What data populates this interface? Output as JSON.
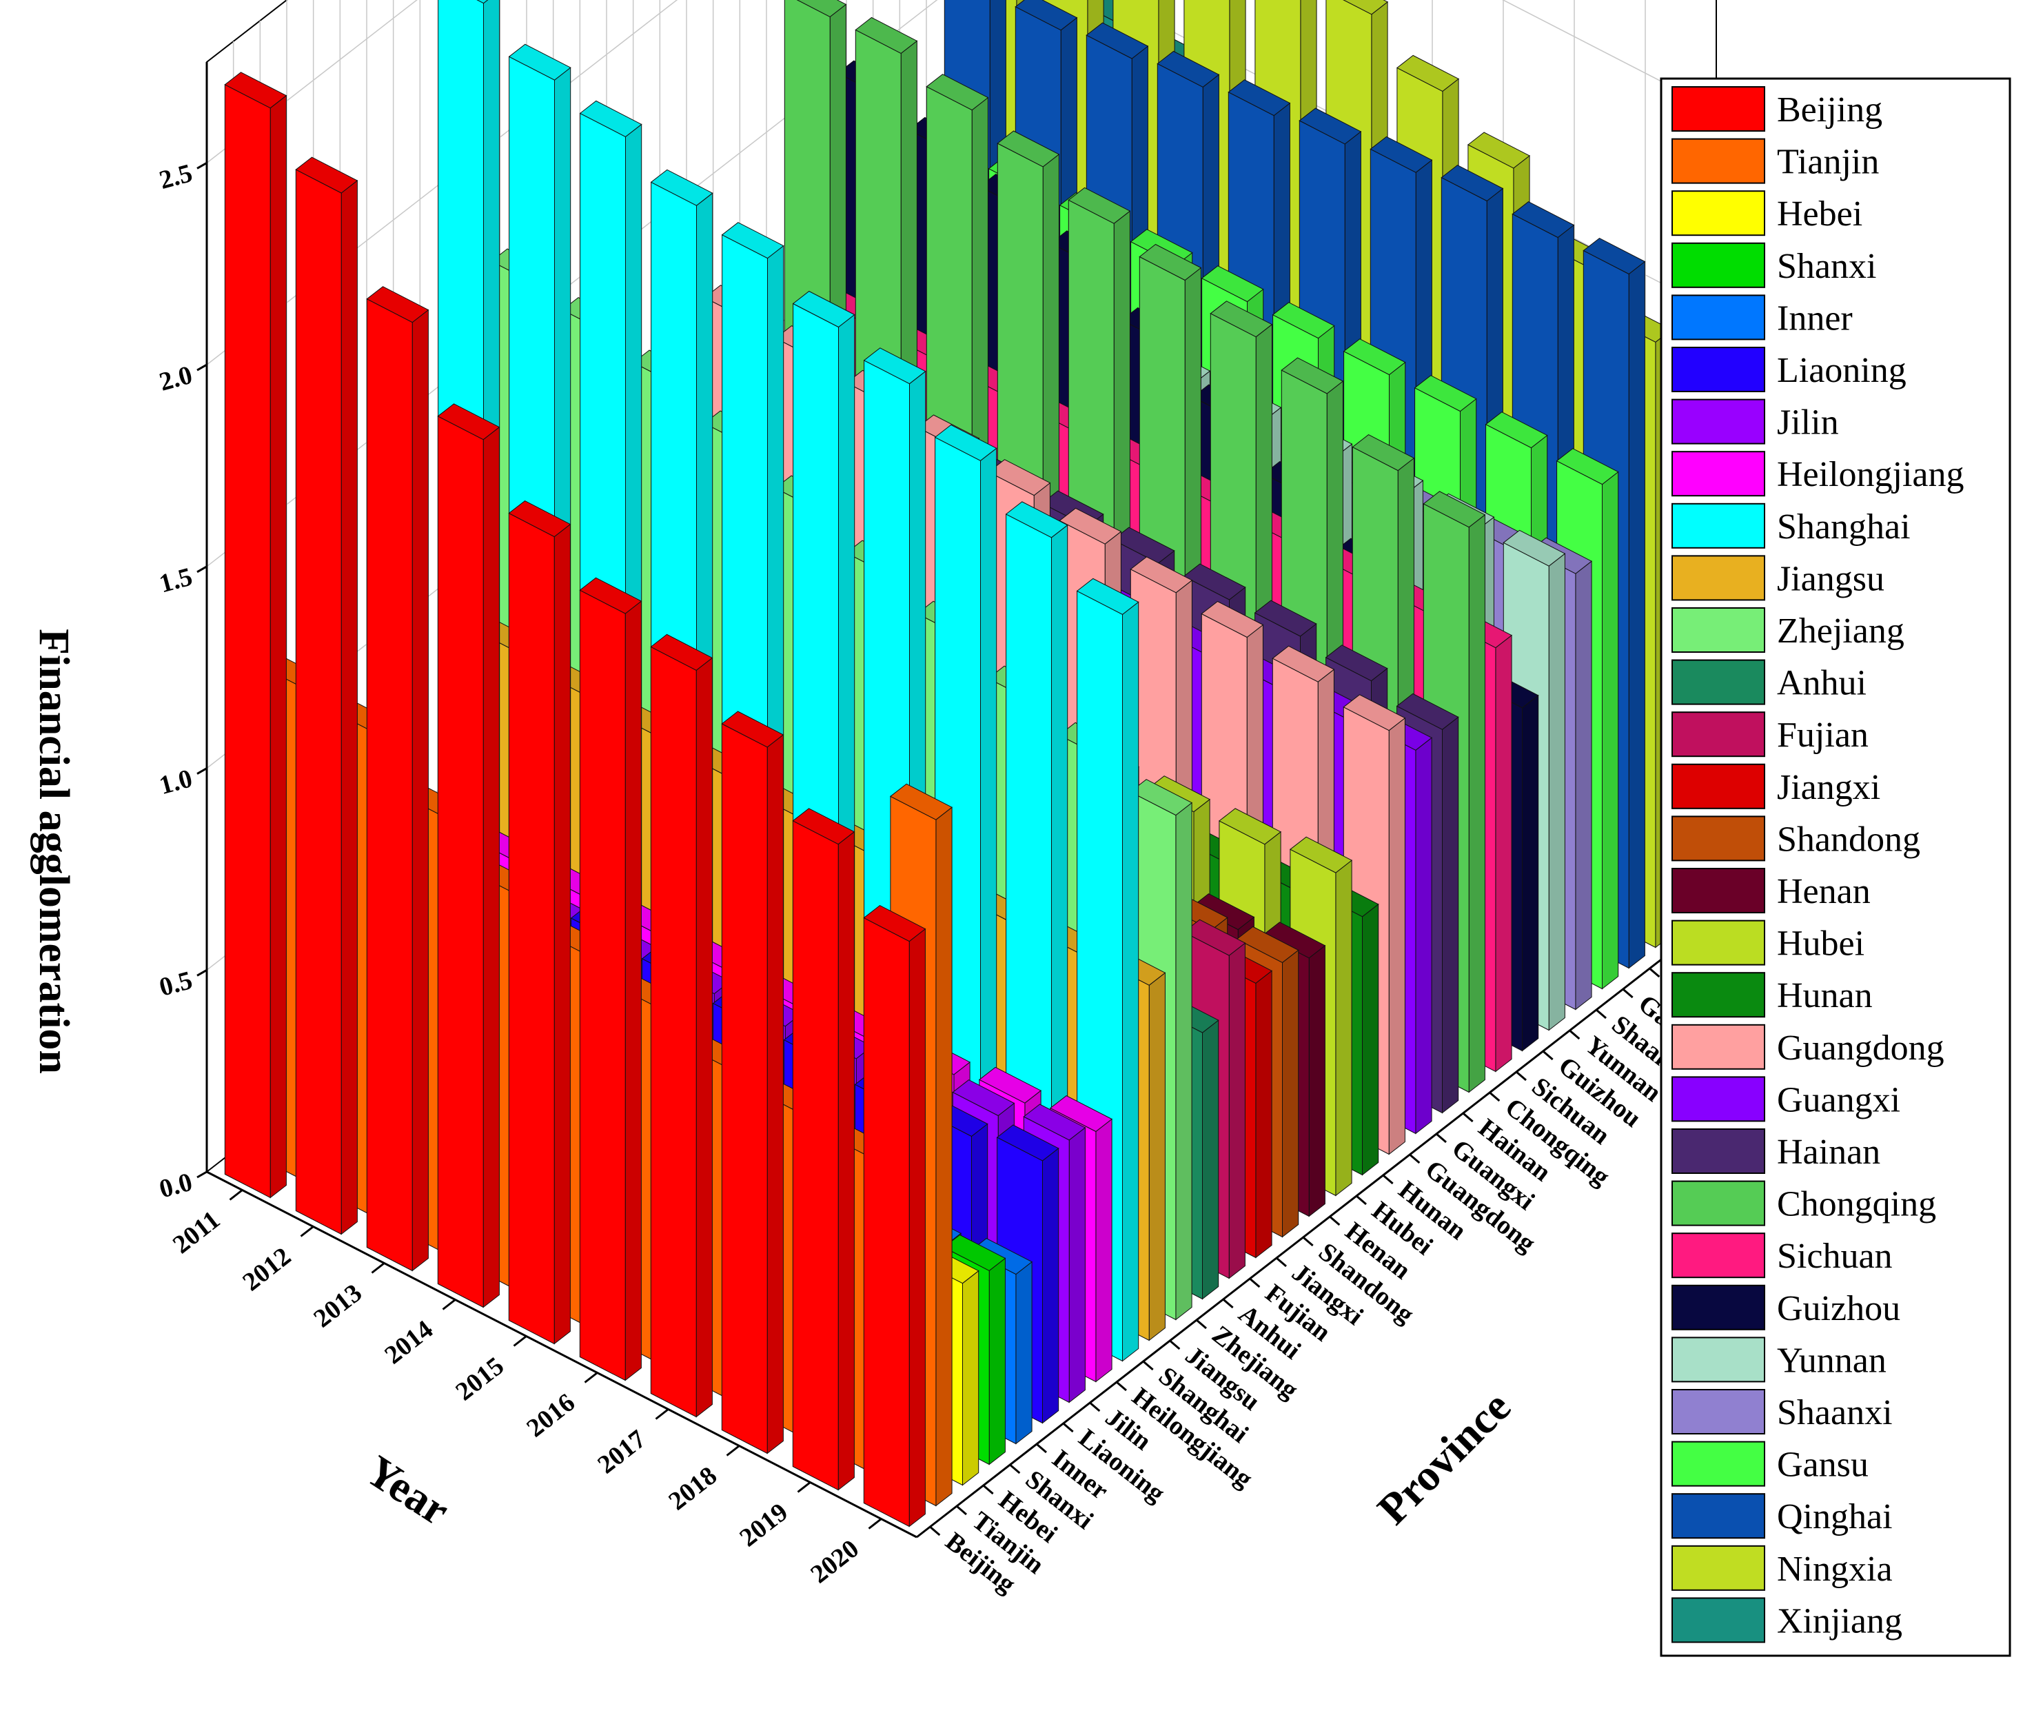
{
  "chart_data": {
    "type": "bar3d",
    "zlabel": "Financial agglomeration",
    "xlabel": "Year",
    "ylabel": "Province",
    "zlim": [
      0,
      2.75
    ],
    "z_ticks": [
      "0.0",
      "0.5",
      "1.0",
      "1.5",
      "2.0",
      "2.5"
    ],
    "grid": true,
    "legend_position": "right",
    "years": [
      "2011",
      "2012",
      "2013",
      "2014",
      "2015",
      "2016",
      "2017",
      "2018",
      "2019",
      "2020"
    ],
    "provinces": [
      "Beijing",
      "Tianjin",
      "Hebei",
      "Shanxi",
      "Inner",
      "Liaoning",
      "Jilin",
      "Heilongjiang",
      "Shanghai",
      "Jiangsu",
      "Zhejiang",
      "Anhui",
      "Fujian",
      "Jiangxi",
      "Shandong",
      "Henan",
      "Hubei",
      "Hunan",
      "Guangdong",
      "Guangxi",
      "Hainan",
      "Chongqing",
      "Sichuan",
      "Guizhou",
      "Yunnan",
      "Shaanxi",
      "Gansu",
      "Qinghai",
      "Ningxia",
      "Xinjiang"
    ],
    "colors": [
      "#ff0000",
      "#ff6600",
      "#ffff00",
      "#00dd00",
      "#0077ff",
      "#2200ff",
      "#9900ff",
      "#ff00ff",
      "#00ffff",
      "#e8b020",
      "#77ee77",
      "#1a8a5e",
      "#c0105e",
      "#dd0000",
      "#c04e08",
      "#6a0028",
      "#bbdd22",
      "#0a8a10",
      "#ffa0a0",
      "#8800ff",
      "#4a2870",
      "#55cc55",
      "#ff1a80",
      "#080840",
      "#a8e0c8",
      "#9080d0",
      "#44ff44",
      "#0a50b0",
      "#c0dd22",
      "#189080"
    ],
    "series": [
      {
        "name": "Beijing",
        "values": [
          2.7,
          2.58,
          2.35,
          2.15,
          2.0,
          1.9,
          1.85,
          1.75,
          1.6,
          1.45
        ]
      },
      {
        "name": "Tianjin",
        "values": [
          1.22,
          1.2,
          1.08,
          0.98,
          0.92,
          0.88,
          0.82,
          0.8,
          0.78,
          1.7
        ]
      },
      {
        "name": "Hebei",
        "values": [
          0.38,
          0.38,
          0.38,
          0.38,
          0.38,
          0.38,
          0.4,
          0.42,
          0.45,
          0.5
        ]
      },
      {
        "name": "Shanxi",
        "values": [
          0.55,
          0.52,
          0.5,
          0.48,
          0.46,
          0.44,
          0.43,
          0.42,
          0.42,
          0.48
        ]
      },
      {
        "name": "Inner",
        "values": [
          0.5,
          0.48,
          0.46,
          0.44,
          0.42,
          0.4,
          0.4,
          0.38,
          0.4,
          0.42
        ]
      },
      {
        "name": "Liaoning",
        "values": [
          0.7,
          0.68,
          0.66,
          0.65,
          0.64,
          0.62,
          0.62,
          0.6,
          0.62,
          0.65
        ]
      },
      {
        "name": "Jilin",
        "values": [
          0.55,
          0.55,
          0.55,
          0.55,
          0.56,
          0.57,
          0.58,
          0.6,
          0.62,
          0.65
        ]
      },
      {
        "name": "Heilongjiang",
        "values": [
          0.55,
          0.55,
          0.55,
          0.55,
          0.55,
          0.55,
          0.56,
          0.58,
          0.6,
          0.62
        ]
      },
      {
        "name": "Shanghai",
        "values": [
          2.55,
          2.45,
          2.4,
          2.32,
          2.28,
          2.2,
          2.15,
          2.05,
          1.95,
          1.85
        ]
      },
      {
        "name": "Jiangsu",
        "values": [
          0.9,
          0.88,
          0.87,
          0.86,
          0.85,
          0.85,
          0.85,
          0.86,
          0.87,
          0.88
        ]
      },
      {
        "name": "Zhejiang",
        "values": [
          1.75,
          1.72,
          1.68,
          1.62,
          1.55,
          1.48,
          1.42,
          1.35,
          1.3,
          1.25
        ]
      },
      {
        "name": "Anhui",
        "values": [
          0.65,
          0.64,
          0.63,
          0.62,
          0.62,
          0.62,
          0.63,
          0.64,
          0.65,
          0.66
        ]
      },
      {
        "name": "Fujian",
        "values": [
          0.8,
          0.8,
          0.8,
          0.8,
          0.8,
          0.8,
          0.8,
          0.8,
          0.8,
          0.8
        ]
      },
      {
        "name": "Jiangxi",
        "values": [
          0.6,
          0.6,
          0.6,
          0.6,
          0.6,
          0.6,
          0.62,
          0.64,
          0.66,
          0.68
        ]
      },
      {
        "name": "Shandong",
        "values": [
          0.7,
          0.68,
          0.67,
          0.66,
          0.65,
          0.65,
          0.65,
          0.66,
          0.67,
          0.68
        ]
      },
      {
        "name": "Henan",
        "values": [
          0.55,
          0.55,
          0.55,
          0.55,
          0.56,
          0.57,
          0.58,
          0.6,
          0.62,
          0.64
        ]
      },
      {
        "name": "Hubei",
        "values": [
          0.7,
          0.72,
          0.72,
          0.73,
          0.74,
          0.75,
          0.76,
          0.77,
          0.78,
          0.8
        ]
      },
      {
        "name": "Hunan",
        "values": [
          0.55,
          0.55,
          0.55,
          0.56,
          0.57,
          0.58,
          0.59,
          0.6,
          0.62,
          0.64
        ]
      },
      {
        "name": "Guangdong",
        "values": [
          1.25,
          1.24,
          1.22,
          1.2,
          1.18,
          1.15,
          1.12,
          1.1,
          1.08,
          1.05
        ]
      },
      {
        "name": "Guangxi",
        "values": [
          0.9,
          0.9,
          0.9,
          0.9,
          0.92,
          0.92,
          0.92,
          0.93,
          0.94,
          0.95
        ]
      },
      {
        "name": "Hainan",
        "values": [
          1.0,
          1.0,
          1.0,
          1.0,
          1.0,
          1.0,
          1.0,
          1.0,
          0.98,
          0.95
        ]
      },
      {
        "name": "Chongqing",
        "values": [
          1.85,
          1.85,
          1.8,
          1.75,
          1.7,
          1.65,
          1.6,
          1.55,
          1.45,
          1.4
        ]
      },
      {
        "name": "Sichuan",
        "values": [
          1.05,
          1.05,
          1.05,
          1.05,
          1.05,
          1.05,
          1.05,
          1.05,
          1.05,
          1.05
        ]
      },
      {
        "name": "Guizhou",
        "values": [
          1.55,
          1.5,
          1.45,
          1.4,
          1.3,
          1.2,
          1.1,
          1.0,
          0.9,
          0.85
        ]
      },
      {
        "name": "Yunnan",
        "values": [
          1.2,
          1.18,
          1.16,
          1.15,
          1.15,
          1.15,
          1.15,
          1.15,
          1.15,
          1.15
        ]
      },
      {
        "name": "Shaanxi",
        "values": [
          0.9,
          0.92,
          0.94,
          0.96,
          0.98,
          1.0,
          1.02,
          1.04,
          1.06,
          1.08
        ]
      },
      {
        "name": "Gansu",
        "values": [
          1.25,
          1.25,
          1.25,
          1.25,
          1.25,
          1.25,
          1.25,
          1.25,
          1.25,
          1.25
        ]
      },
      {
        "name": "Qinghai",
        "values": [
          1.6,
          1.6,
          1.62,
          1.64,
          1.66,
          1.68,
          1.7,
          1.72,
          1.72,
          1.72
        ]
      },
      {
        "name": "Ningxia",
        "values": [
          2.4,
          2.35,
          2.3,
          2.2,
          2.05,
          1.95,
          1.85,
          1.75,
          1.6,
          1.5
        ]
      },
      {
        "name": "Xinjiang",
        "values": [
          1.55,
          1.52,
          1.5,
          1.48,
          1.45,
          1.42,
          1.4,
          1.38,
          1.36,
          1.35
        ]
      }
    ]
  }
}
